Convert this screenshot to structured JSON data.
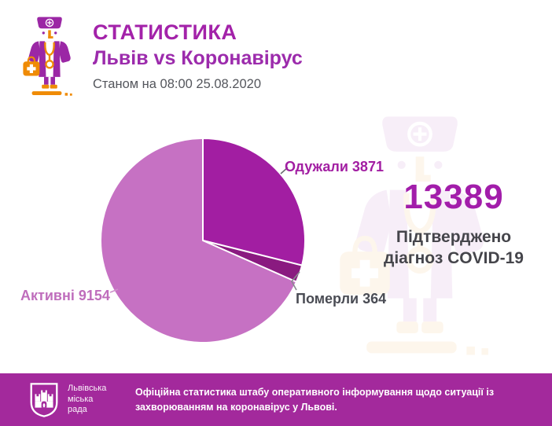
{
  "header": {
    "title": "СТАТИСТИКА",
    "subtitle": "Львів vs Коронавірус",
    "date_line": "Станом на 08:00 25.08.2020"
  },
  "chart_data": {
    "type": "pie",
    "total_value": 13389,
    "start_angle_deg": -90,
    "direction": "clockwise",
    "legend_position": "callout-labels",
    "slices": [
      {
        "label": "Одужали",
        "value": 3871,
        "display": "Одужали 3871",
        "color": "#a21ea2"
      },
      {
        "label": "Померли",
        "value": 364,
        "display": "Померли 364",
        "color": "#8a1a80"
      },
      {
        "label": "Активні",
        "value": 9154,
        "display": "Активні 9154",
        "color": "#c671c3"
      }
    ]
  },
  "summary": {
    "total": "13389",
    "caption_line1": "Підтверджено",
    "caption_line2": "діагноз COVID-19"
  },
  "footer": {
    "bar_color": "#a3299c",
    "logo_lines": [
      "Львівська",
      "міська",
      "рада"
    ],
    "text": "Офіційна статистика штабу оперативного інформування щодо ситуації із захворюванням на коронавірус у Львові."
  },
  "colors": {
    "title": "#a322a9",
    "total_number": "#a21daa",
    "caption": "#45454b",
    "icon_purple": "#9b27a5",
    "icon_orange": "#ef8b06",
    "label_recovered": "#a21ea2",
    "label_died": "#4a4c54",
    "label_active": "#bf6dbc"
  },
  "icon_names": {
    "doctor": "doctor-mascot-icon",
    "crest": "lviv-city-council-crest"
  }
}
